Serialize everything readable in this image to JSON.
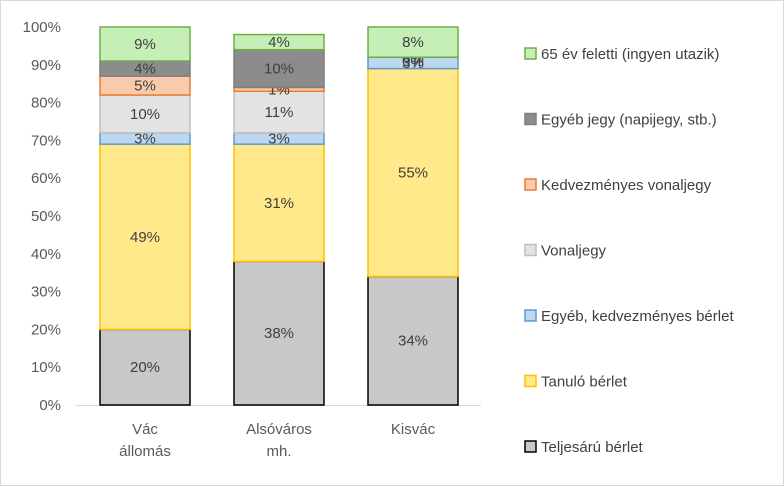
{
  "chart_data": {
    "type": "bar",
    "stacked": true,
    "percent_axis": true,
    "ylim": [
      0,
      100
    ],
    "yticks": [
      "0%",
      "10%",
      "20%",
      "30%",
      "40%",
      "50%",
      "60%",
      "70%",
      "80%",
      "90%",
      "100%"
    ],
    "categories": [
      [
        "Vác",
        "állomás"
      ],
      [
        "Alsóváros",
        "mh."
      ],
      [
        "Kisvác"
      ]
    ],
    "series": [
      {
        "name": "Teljesárú bérlet",
        "values": [
          20,
          38,
          34
        ],
        "labels": [
          "20%",
          "38%",
          "34%"
        ],
        "color": "#c8c8c8",
        "border": "#000000"
      },
      {
        "name": "Tanuló bérlet",
        "values": [
          49,
          31,
          55
        ],
        "labels": [
          "49%",
          "31%",
          "55%"
        ],
        "color": "#ffe98a",
        "border": "#ffc000"
      },
      {
        "name": "Egyéb, kedvezményes bérlet",
        "values": [
          3,
          3,
          3
        ],
        "labels": [
          "3%",
          "3%",
          "3%"
        ],
        "color": "#bdd7ee",
        "border": "#5b9bd5"
      },
      {
        "name": "Vonaljegy",
        "values": [
          10,
          11,
          0
        ],
        "labels": [
          "10%",
          "11%",
          "0%"
        ],
        "color": "#e3e3e3",
        "border": "#bfbfbf"
      },
      {
        "name": "Kedvezményes vonaljegy",
        "values": [
          5,
          1,
          0
        ],
        "labels": [
          "5%",
          "1%",
          "0%"
        ],
        "color": "#f8cbad",
        "border": "#ed7d31"
      },
      {
        "name": "Egyéb jegy (napijegy, stb.)",
        "values": [
          4,
          10,
          0
        ],
        "labels": [
          "4%",
          "10%",
          "0%"
        ],
        "color": "#8c8c8c",
        "border": "#7f7f7f"
      },
      {
        "name": "65 év feletti (ingyen utazik)",
        "values": [
          9,
          4,
          8
        ],
        "labels": [
          "9%",
          "4%",
          "8%"
        ],
        "color": "#c6efb8",
        "border": "#70ad47"
      }
    ],
    "legend_position": "right",
    "grid": false
  }
}
